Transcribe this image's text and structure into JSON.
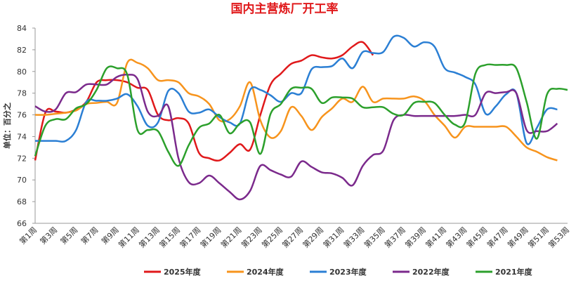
{
  "chart_data": {
    "type": "line",
    "title": "国内主营炼厂开工率",
    "y_label": "单位：百分之",
    "categories": [
      "第1周",
      null,
      "第3周",
      null,
      "第5周",
      null,
      "第7周",
      null,
      "第9周",
      null,
      "第11周",
      null,
      "第13周",
      null,
      "第15周",
      null,
      "第17周",
      null,
      "第19周",
      null,
      "第21周",
      null,
      "第23周",
      null,
      "第25周",
      null,
      "第27周",
      null,
      "第29周",
      null,
      "第31周",
      null,
      "第33周",
      null,
      "第35周",
      null,
      "第37周",
      null,
      "第39周",
      null,
      "第41周",
      null,
      "第43周",
      null,
      "第45周",
      null,
      "第47周",
      null,
      "第49周",
      null,
      "第51周",
      null,
      "第53周"
    ],
    "ylim": [
      66,
      84
    ],
    "yticks": [
      66,
      68,
      70,
      72,
      74,
      76,
      78,
      80,
      82,
      84
    ],
    "legend": "bottom",
    "series": [
      {
        "name": "2025年度",
        "color": "#e0191b",
        "values": [
          71.8,
          76.2,
          76.3,
          76.2,
          76.5,
          77.2,
          79.0,
          79.2,
          79.2,
          79.0,
          78.5,
          78.3,
          76.0,
          75.5,
          75.7,
          75.2,
          72.5,
          72.0,
          71.8,
          72.5,
          73.3,
          72.8,
          76.0,
          78.8,
          79.8,
          80.7,
          81.0,
          81.5,
          81.3,
          81.2,
          81.5,
          82.3,
          82.7,
          81.5,
          null,
          null,
          null,
          null,
          null,
          null,
          null,
          null,
          null,
          null,
          null,
          null,
          null,
          null,
          null,
          null,
          null,
          null,
          null
        ]
      },
      {
        "name": "2024年度",
        "color": "#f7941d",
        "values": [
          76.0,
          76.0,
          76.1,
          76.2,
          76.4,
          77.0,
          77.1,
          77.2,
          77.1,
          80.8,
          80.8,
          80.3,
          79.2,
          79.2,
          79.0,
          78.0,
          77.7,
          77.0,
          75.5,
          75.6,
          76.8,
          79.0,
          75.5,
          73.9,
          74.5,
          76.7,
          75.9,
          74.6,
          75.8,
          76.6,
          77.5,
          77.2,
          78.6,
          77.2,
          77.5,
          77.5,
          77.5,
          77.7,
          77.3,
          76.0,
          75.0,
          73.9,
          74.9,
          74.9,
          74.9,
          74.9,
          74.9,
          74.0,
          73.0,
          72.6,
          72.1,
          71.8,
          null
        ]
      },
      {
        "name": "2023年度",
        "color": "#2b7fd4",
        "values": [
          73.6,
          73.6,
          73.6,
          73.6,
          74.6,
          77.2,
          77.3,
          77.3,
          77.5,
          77.9,
          76.8,
          75.0,
          75.3,
          78.2,
          78.0,
          76.3,
          76.2,
          76.5,
          75.8,
          75.3,
          75.2,
          78.3,
          78.3,
          77.8,
          77.2,
          78.0,
          78.0,
          80.2,
          80.4,
          80.5,
          81.2,
          80.3,
          81.8,
          81.7,
          81.8,
          83.2,
          83.1,
          82.3,
          82.7,
          82.3,
          80.3,
          79.9,
          79.5,
          78.8,
          76.1,
          76.8,
          77.9,
          78.0,
          73.4,
          74.8,
          76.5,
          76.5,
          null
        ]
      },
      {
        "name": "2022年度",
        "color": "#7b2a8c",
        "values": [
          76.8,
          76.3,
          76.5,
          78.0,
          78.1,
          78.8,
          78.8,
          78.8,
          79.5,
          79.7,
          79.3,
          76.3,
          75.9,
          76.8,
          72.0,
          69.8,
          69.7,
          70.4,
          69.7,
          68.9,
          68.2,
          69.0,
          71.3,
          70.9,
          70.5,
          70.3,
          71.7,
          71.2,
          70.7,
          70.6,
          70.2,
          69.5,
          71.3,
          72.3,
          72.7,
          75.5,
          76.0,
          75.9,
          75.9,
          75.9,
          75.9,
          75.9,
          76.0,
          76.0,
          78.0,
          78.0,
          78.1,
          78.0,
          74.6,
          74.5,
          74.5,
          75.2,
          null
        ]
      },
      {
        "name": "2021年度",
        "color": "#2ca02c",
        "values": [
          72.2,
          75.0,
          75.6,
          75.6,
          76.6,
          77.0,
          78.3,
          80.3,
          80.3,
          79.7,
          74.6,
          74.6,
          74.5,
          72.6,
          71.3,
          73.2,
          74.8,
          75.2,
          76.0,
          74.3,
          75.2,
          75.3,
          72.4,
          76.1,
          77.0,
          78.4,
          78.5,
          78.4,
          77.1,
          77.6,
          77.6,
          77.5,
          76.7,
          76.7,
          76.7,
          76.1,
          76.0,
          77.1,
          77.2,
          77.1,
          76.0,
          75.1,
          75.3,
          79.8,
          80.6,
          80.6,
          80.6,
          80.3,
          77.2,
          73.8,
          77.9,
          78.4,
          78.3
        ]
      }
    ]
  }
}
